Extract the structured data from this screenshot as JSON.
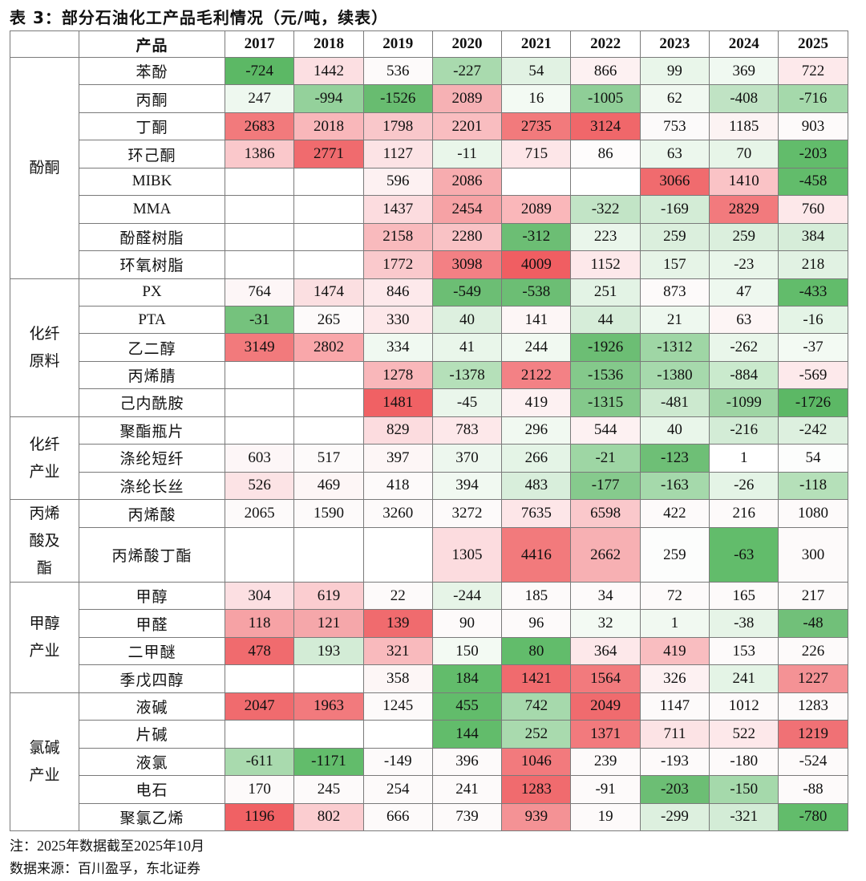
{
  "title": "表 3：部分石油化工产品毛利情况（元/吨，续表）",
  "header": {
    "product_label": "产品",
    "years": [
      "2017",
      "2018",
      "2019",
      "2020",
      "2021",
      "2022",
      "2023",
      "2024",
      "2025"
    ]
  },
  "groups": [
    {
      "name": "酚酮",
      "rows": [
        {
          "product": "苯酚",
          "values": [
            "-724",
            "1442",
            "536",
            "-227",
            "54",
            "866",
            "99",
            "369",
            "722"
          ]
        },
        {
          "product": "丙酮",
          "values": [
            "247",
            "-994",
            "-1526",
            "2089",
            "16",
            "-1005",
            "62",
            "-408",
            "-716"
          ]
        },
        {
          "product": "丁酮",
          "values": [
            "2683",
            "2018",
            "1798",
            "2201",
            "2735",
            "3124",
            "753",
            "1185",
            "903"
          ]
        },
        {
          "product": "环己酮",
          "values": [
            "1386",
            "2771",
            "1127",
            "-11",
            "715",
            "86",
            "63",
            "70",
            "-203"
          ]
        },
        {
          "product": "MIBK",
          "values": [
            "",
            "",
            "596",
            "2086",
            "",
            "",
            "3066",
            "1410",
            "-458"
          ]
        },
        {
          "product": "MMA",
          "values": [
            "",
            "",
            "1437",
            "2454",
            "2089",
            "-322",
            "-169",
            "2829",
            "760"
          ]
        },
        {
          "product": "酚醛树脂",
          "values": [
            "",
            "",
            "2158",
            "2280",
            "-312",
            "223",
            "259",
            "259",
            "384"
          ]
        },
        {
          "product": "环氧树脂",
          "values": [
            "",
            "",
            "1772",
            "3098",
            "4009",
            "1152",
            "157",
            "-23",
            "218"
          ]
        }
      ]
    },
    {
      "name": "化纤原料",
      "rows": [
        {
          "product": "PX",
          "values": [
            "764",
            "1474",
            "846",
            "-549",
            "-538",
            "251",
            "873",
            "47",
            "-433"
          ]
        },
        {
          "product": "PTA",
          "values": [
            "-31",
            "265",
            "330",
            "40",
            "141",
            "44",
            "21",
            "63",
            "-16"
          ]
        },
        {
          "product": "乙二醇",
          "values": [
            "3149",
            "2802",
            "334",
            "41",
            "244",
            "-1926",
            "-1312",
            "-262",
            "-37"
          ]
        },
        {
          "product": "丙烯腈",
          "values": [
            "",
            "",
            "1278",
            "-1378",
            "2122",
            "-1536",
            "-1380",
            "-884",
            "-569"
          ]
        },
        {
          "product": "己内酰胺",
          "values": [
            "",
            "",
            "1481",
            "-45",
            "419",
            "-1315",
            "-481",
            "-1099",
            "-1726"
          ]
        }
      ]
    },
    {
      "name": "化纤产业",
      "rows": [
        {
          "product": "聚酯瓶片",
          "values": [
            "",
            "",
            "829",
            "783",
            "296",
            "544",
            "40",
            "-216",
            "-242"
          ]
        },
        {
          "product": "涤纶短纤",
          "values": [
            "603",
            "517",
            "397",
            "370",
            "266",
            "-21",
            "-123",
            "1",
            "54"
          ]
        },
        {
          "product": "涤纶长丝",
          "values": [
            "526",
            "469",
            "418",
            "394",
            "483",
            "-177",
            "-163",
            "-26",
            "-118"
          ]
        }
      ]
    },
    {
      "name": "丙烯酸及酯",
      "rows": [
        {
          "product": "丙烯酸",
          "values": [
            "2065",
            "1590",
            "3260",
            "3272",
            "7635",
            "6598",
            "422",
            "216",
            "1080"
          ]
        },
        {
          "product": "丙烯酸丁酯",
          "values": [
            "",
            "",
            "",
            "1305",
            "4416",
            "2662",
            "259",
            "-63",
            "300"
          ]
        }
      ]
    },
    {
      "name": "甲醇产业",
      "rows": [
        {
          "product": "甲醇",
          "values": [
            "304",
            "619",
            "22",
            "-244",
            "185",
            "34",
            "72",
            "165",
            "217"
          ]
        },
        {
          "product": "甲醛",
          "values": [
            "118",
            "121",
            "139",
            "90",
            "96",
            "32",
            "1",
            "-38",
            "-48"
          ]
        },
        {
          "product": "二甲醚",
          "values": [
            "478",
            "193",
            "321",
            "150",
            "80",
            "364",
            "419",
            "153",
            "226"
          ]
        },
        {
          "product": "季戊四醇",
          "values": [
            "",
            "",
            "358",
            "184",
            "1421",
            "1564",
            "326",
            "241",
            "1227"
          ]
        }
      ]
    },
    {
      "name": "氯碱产业",
      "rows": [
        {
          "product": "液碱",
          "values": [
            "2047",
            "1963",
            "1245",
            "455",
            "742",
            "2049",
            "1147",
            "1012",
            "1283"
          ]
        },
        {
          "product": "片碱",
          "values": [
            "",
            "",
            "",
            "144",
            "252",
            "1371",
            "711",
            "522",
            "1219"
          ]
        },
        {
          "product": "液氯",
          "values": [
            "-611",
            "-1171",
            "-149",
            "396",
            "1046",
            "239",
            "-193",
            "-180",
            "-524"
          ]
        },
        {
          "product": "电石",
          "values": [
            "170",
            "245",
            "254",
            "241",
            "1283",
            "-91",
            "-203",
            "-150",
            "-88"
          ]
        },
        {
          "product": "聚氯乙烯",
          "values": [
            "1196",
            "802",
            "666",
            "739",
            "939",
            "19",
            "-299",
            "-321",
            "-780"
          ]
        }
      ]
    }
  ],
  "colors": [
    [
      "#5cb865",
      "#fcdfe2",
      "#fdfafa",
      "#a9daae",
      "#e1f2e3",
      "#fdf1f2",
      "#e9f6ea",
      "#f0f9f1",
      "#fde9eb"
    ],
    [
      "#eef8ef",
      "#94d19b",
      "#68bc70",
      "#f6b1b4",
      "#f3faf3",
      "#8fce97",
      "#f1f9f1",
      "#c0e3c4",
      "#a5d9ab"
    ],
    [
      "#f27a7c",
      "#f9b7ba",
      "#f9c7ca",
      "#f9bdc0",
      "#f27a7c",
      "#f0676a",
      "#fcfafa",
      "#fcf3f3",
      "#fdfafa"
    ],
    [
      "#fac8cb",
      "#f06b6e",
      "#fce3e5",
      "#e9f6ea",
      "#fde6e8",
      "#fefcfc",
      "#ecf7ed",
      "#e7f5e8",
      "#62bc6b"
    ],
    [
      "#ffffff",
      "#ffffff",
      "#fdf1f2",
      "#f7acaf",
      "#ffffff",
      "#ffffff",
      "#f06b6e",
      "#fac3c6",
      "#62bc6b"
    ],
    [
      "#ffffff",
      "#ffffff",
      "#fcdcdf",
      "#f6a2a5",
      "#fab7ba",
      "#c2e4c6",
      "#d3ecd6",
      "#f27a7d",
      "#fde8ea"
    ],
    [
      "#ffffff",
      "#ffffff",
      "#f9babd",
      "#f9c2c5",
      "#6cbe74",
      "#eaf6eb",
      "#dbefdd",
      "#dbefdd",
      "#d6edd9"
    ],
    [
      "#ffffff",
      "#ffffff",
      "#fac9cc",
      "#f38084",
      "#f05e62",
      "#fde8ea",
      "#e6f4e7",
      "#e9f6ea",
      "#e1f2e3"
    ],
    [
      "#fdf6f7",
      "#fbdfe1",
      "#fde9eb",
      "#6cbe74",
      "#6cbe74",
      "#e3f3e5",
      "#fdfafa",
      "#eef8ef",
      "#62bc6b"
    ],
    [
      "#75c27d",
      "#fdfafa",
      "#fde8ea",
      "#ddf0df",
      "#fdf6f6",
      "#d6edd9",
      "#eef8ef",
      "#fdf5f5",
      "#e4f4e6"
    ],
    [
      "#f27a7c",
      "#f9a7aa",
      "#f0f9f1",
      "#e9f6ea",
      "#f1f9f1",
      "#6cbe74",
      "#9fd6a5",
      "#e9f6ea",
      "#f3faf3"
    ],
    [
      "#ffffff",
      "#ffffff",
      "#f9b7ba",
      "#b5e0b9",
      "#f38185",
      "#84c98b",
      "#a6d9ac",
      "#caeacd",
      "#fde9eb"
    ],
    [
      "#ffffff",
      "#ffffff",
      "#f06164",
      "#eaf6eb",
      "#fdf1f2",
      "#84c98b",
      "#cce9cf",
      "#9dd5a3",
      "#5cb865"
    ],
    [
      "#ffffff",
      "#ffffff",
      "#fcdcdf",
      "#fde8ea",
      "#f1f9f1",
      "#fdf1f2",
      "#e9f6ea",
      "#d3ecd6",
      "#ddf0df"
    ],
    [
      "#fdf6f7",
      "#fdfafa",
      "#fdf6f6",
      "#edf7ee",
      "#e4f4e6",
      "#9ed6a4",
      "#6ebf76",
      "#ffffff",
      "#fcfdfc"
    ],
    [
      "#fce3e5",
      "#fdf6f6",
      "#fdfafa",
      "#f1f9f1",
      "#d8eedb",
      "#86ca8d",
      "#a5d9ab",
      "#e4f4e6",
      "#b5e0b9"
    ],
    [
      "#fdfafa",
      "#fdfafa",
      "#fdfafa",
      "#fdfafa",
      "#fde6e8",
      "#fac8cb",
      "#fdfafa",
      "#fdfafa",
      "#fdfafa"
    ],
    [
      "#ffffff",
      "#ffffff",
      "#ffffff",
      "#fcdcdf",
      "#f27a7c",
      "#f7b0b3",
      "#fcfdfc",
      "#62bc6b",
      "#fdfafa"
    ],
    [
      "#fcdfe2",
      "#fbcdd0",
      "#fdfafa",
      "#e6f4e7",
      "#fdfafa",
      "#fdfafa",
      "#fdfafa",
      "#fdfafa",
      "#fdfafa"
    ],
    [
      "#f6a2a5",
      "#f5a7aa",
      "#f06b6e",
      "#fdfafa",
      "#fdfafa",
      "#f3faf3",
      "#f1f9f1",
      "#e6f4e7",
      "#71c079"
    ],
    [
      "#f06b6e",
      "#d3ecd6",
      "#f9babd",
      "#f3faf3",
      "#62bc6b",
      "#fde8ea",
      "#f9bdc0",
      "#fdfafa",
      "#fdfafa"
    ],
    [
      "#ffffff",
      "#ffffff",
      "#fdf6f6",
      "#62bc6b",
      "#f06b6e",
      "#f27a7d",
      "#fdf1f2",
      "#e4f4e6",
      "#f49295"
    ],
    [
      "#f06b6e",
      "#f27a7d",
      "#fdfafa",
      "#62bc6b",
      "#a6d9ac",
      "#f06b6e",
      "#fdfafa",
      "#fdfafa",
      "#fdfafa"
    ],
    [
      "#ffffff",
      "#ffffff",
      "#ffffff",
      "#62bc6b",
      "#a9daae",
      "#f27a7d",
      "#fce3e5",
      "#fde8ea",
      "#f07175"
    ],
    [
      "#a9daae",
      "#62bc6b",
      "#fdfafa",
      "#fdfafa",
      "#f27a7d",
      "#fdfafa",
      "#fdfafa",
      "#fdfafa",
      "#fdfafa"
    ],
    [
      "#fdfafa",
      "#fdfafa",
      "#fdfafa",
      "#fdfafa",
      "#f06b6e",
      "#fdfafa",
      "#6cbe74",
      "#a5d9ab",
      "#fdfafa"
    ],
    [
      "#f06164",
      "#fbcdd0",
      "#fdfafa",
      "#fdfafa",
      "#f49295",
      "#fdfafa",
      "#ddf0df",
      "#d3ecd6",
      "#62bc6b"
    ]
  ],
  "note": {
    "label": "注：",
    "year": "2025",
    "unit_year": "年数据截至",
    "end": "2025",
    "month_unit": "年",
    "month": "10",
    "month_label": "月"
  },
  "source": "数据来源：百川盈孚，东北证券"
}
